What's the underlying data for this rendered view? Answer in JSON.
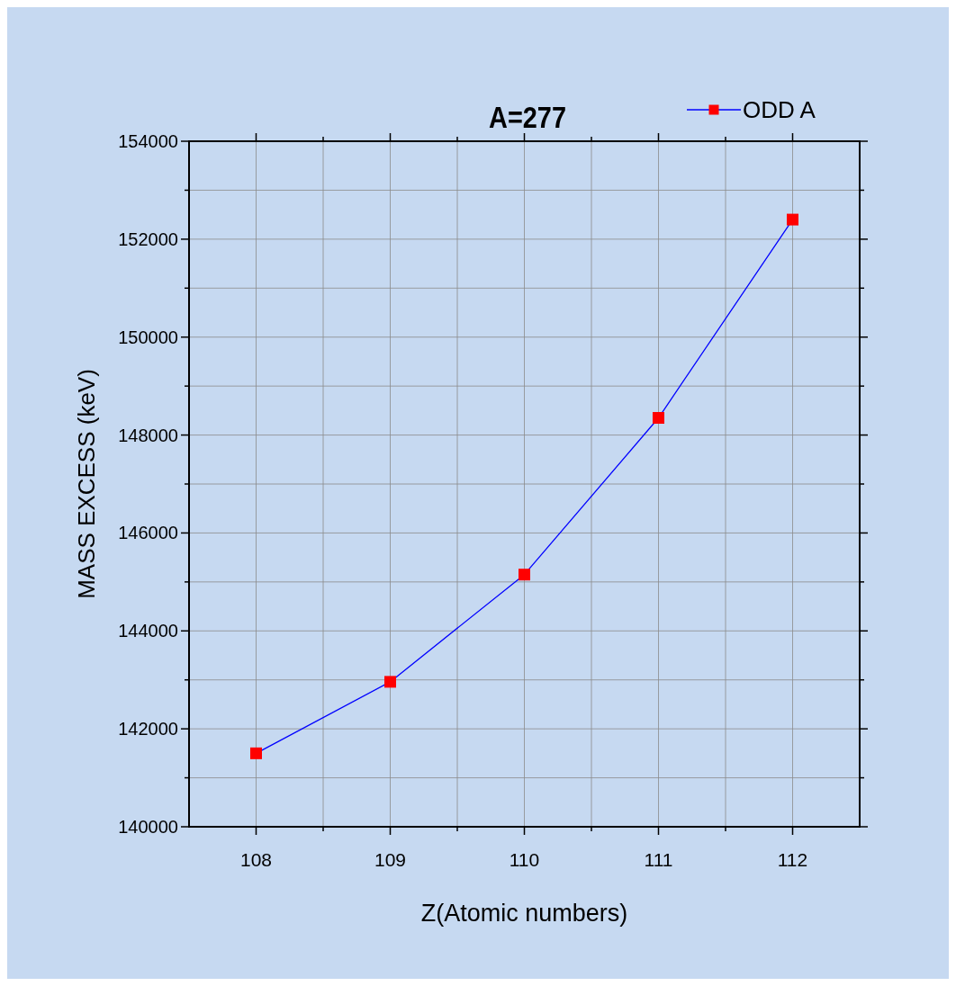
{
  "chart_data": {
    "type": "line",
    "title": "A=277",
    "xlabel": "Z(Atomic numbers)",
    "ylabel": "MASS EXCESS (keV)",
    "x": [
      108,
      109,
      110,
      111,
      112
    ],
    "series": [
      {
        "name": "ODD A",
        "color": "#0000ff",
        "colors": [
          "#ff0000",
          "#ff0000",
          "#ff0000",
          "#ff0000",
          "#ff0000"
        ],
        "values": [
          141500,
          142960,
          145150,
          148350,
          152400
        ]
      }
    ],
    "xlim": [
      107.5,
      112.5
    ],
    "xticks": [
      108,
      {
        "value": 108.5,
        "label": null
      },
      109,
      {
        "value": 109.5,
        "label": null
      },
      110,
      {
        "value": 110.5,
        "label": null
      },
      111,
      {
        "value": 111.5,
        "label": null
      },
      112
    ],
    "ylim": [
      140000,
      154000
    ],
    "yticks": [
      140000,
      {
        "value": 141000,
        "label": null
      },
      142000,
      {
        "value": 143000,
        "label": null
      },
      144000,
      {
        "value": 145000,
        "label": null
      },
      146000,
      {
        "value": 147000,
        "label": null
      },
      148000,
      {
        "value": 149000,
        "label": null
      },
      150000,
      {
        "value": 151000,
        "label": null
      },
      152000,
      {
        "value": 153000,
        "label": null
      },
      154000
    ],
    "grid": true,
    "legend": "top right",
    "marker": "square",
    "line_style": "solid"
  }
}
